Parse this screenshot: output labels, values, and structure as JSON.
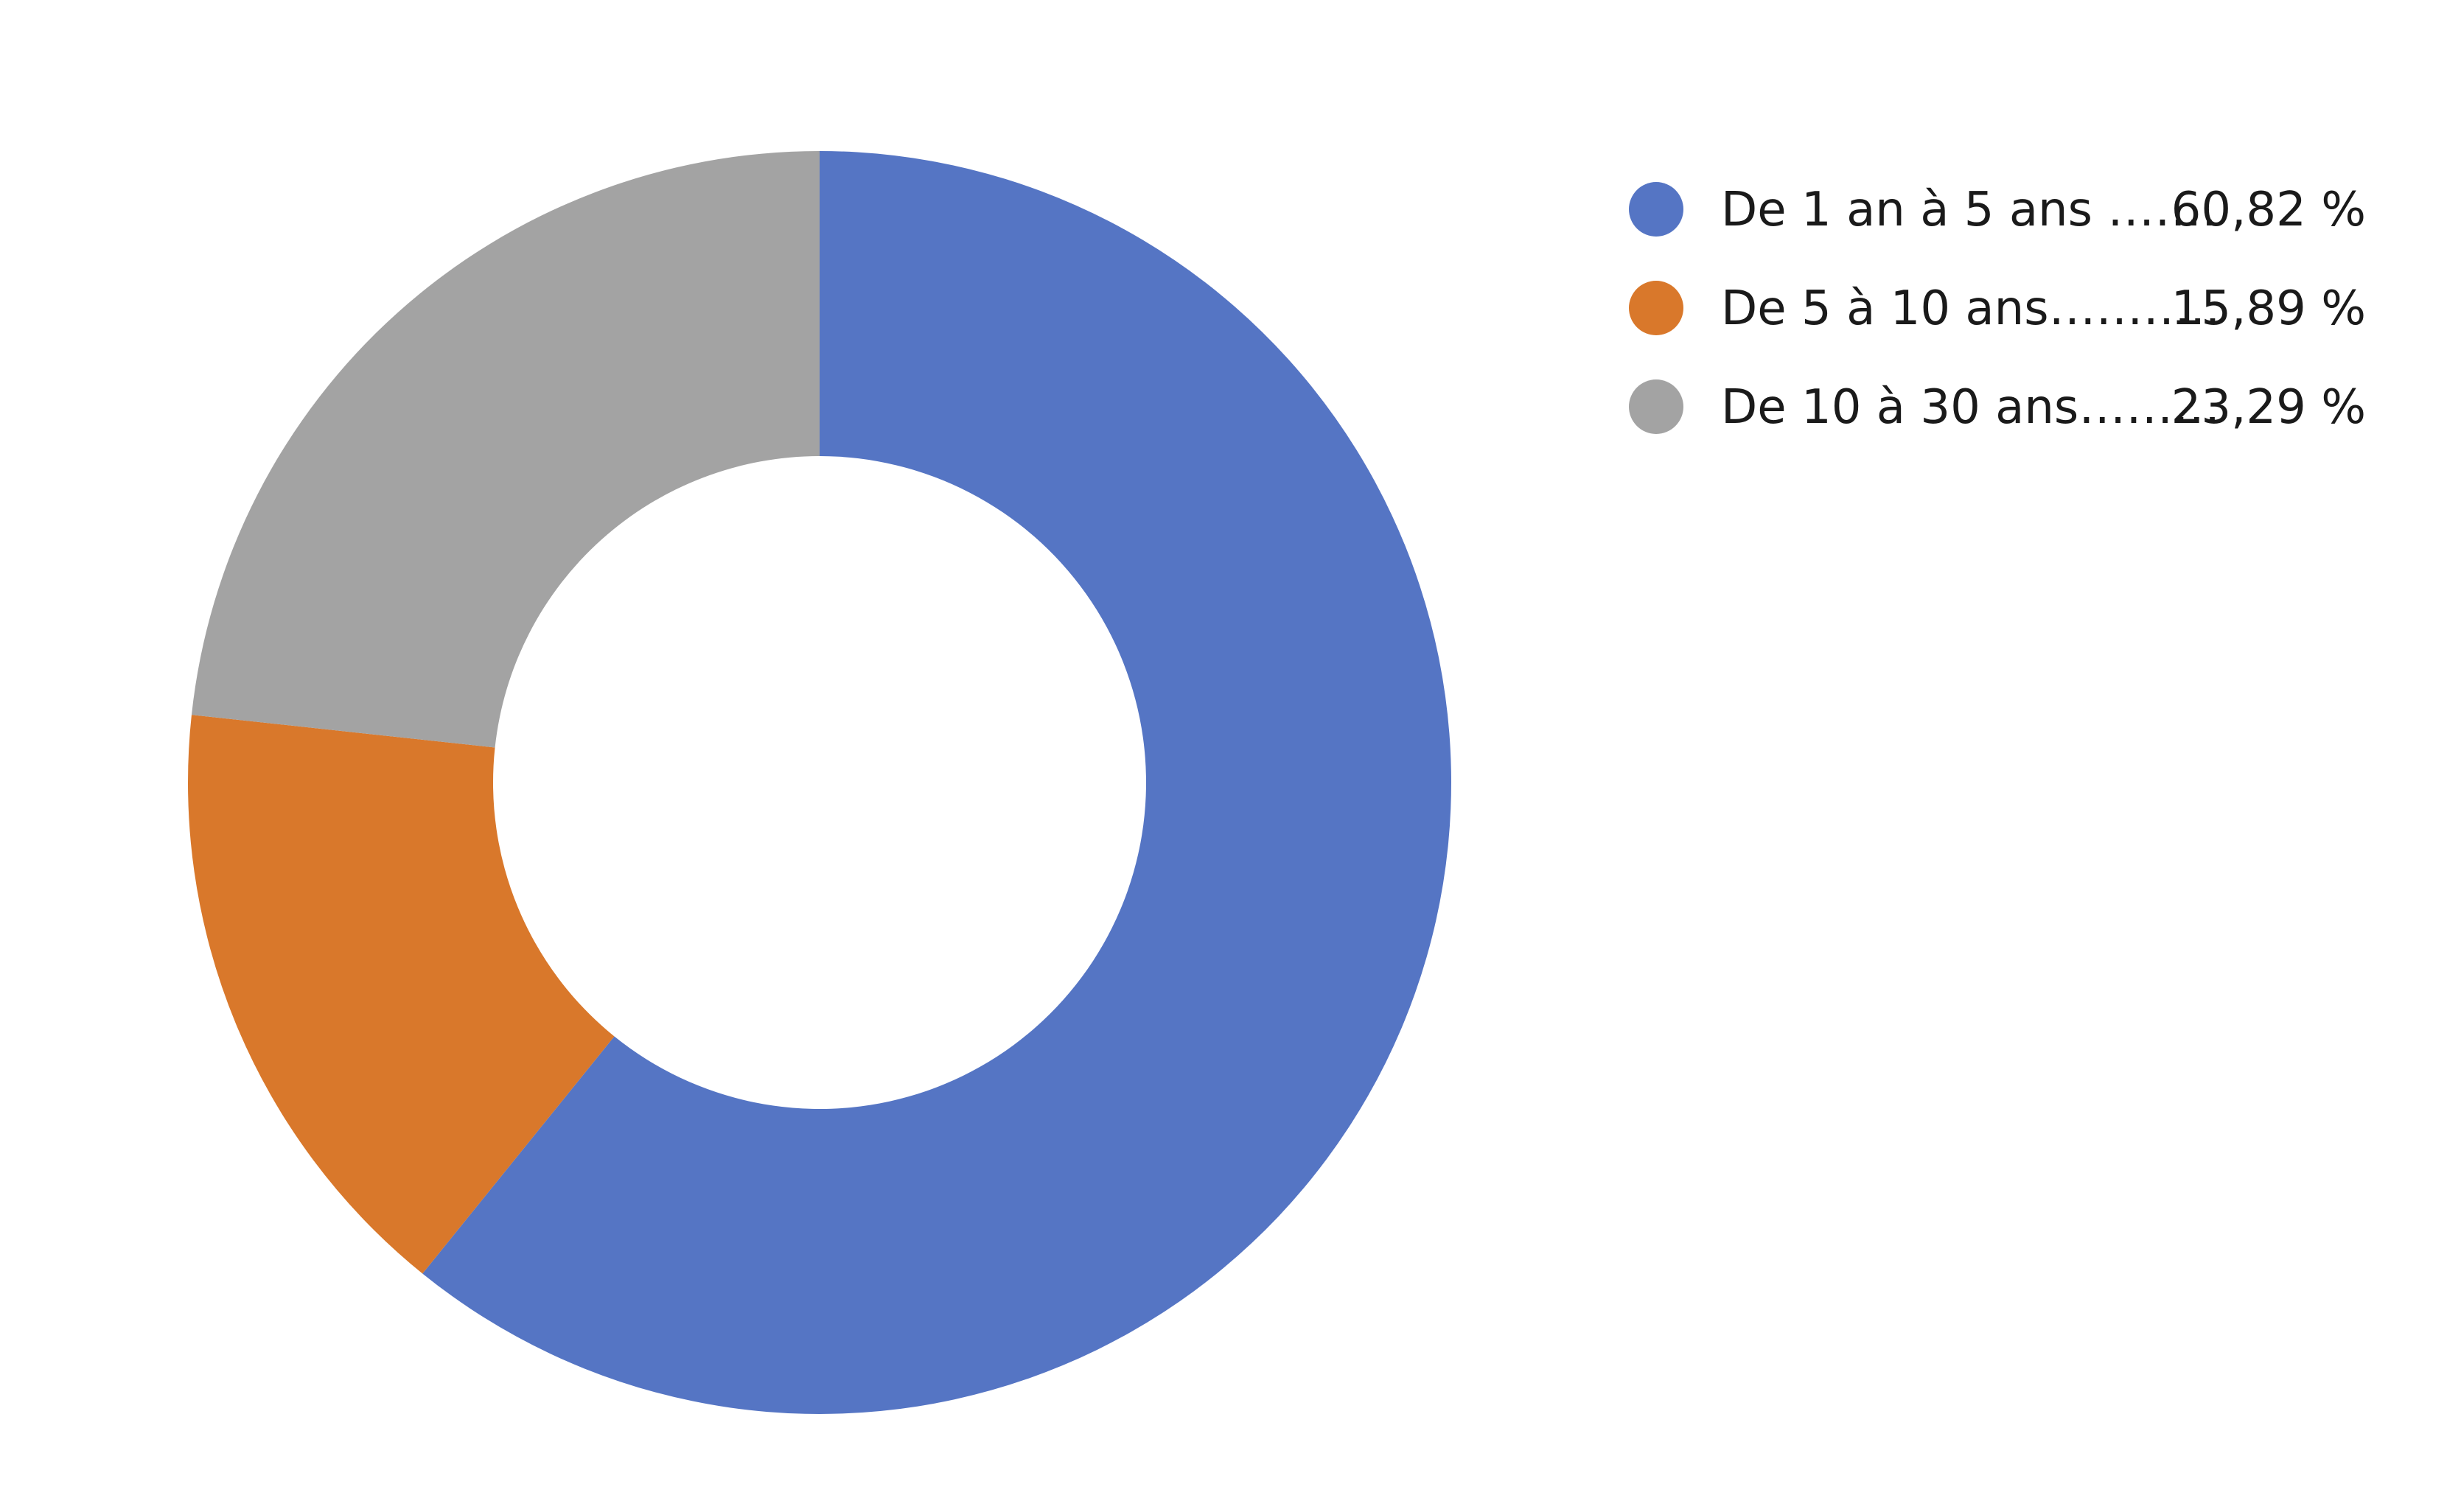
{
  "chart_data": {
    "type": "pie",
    "donut": true,
    "start_angle_deg": 0,
    "direction": "clockwise",
    "slices": [
      {
        "label": "De 1 an à 5 ans …….",
        "value_text": "60,82 %",
        "value": 60.82,
        "color": "#5575C4"
      },
      {
        "label": "De 5 à 10 ans………..",
        "value_text": "15,89 %",
        "value": 15.89,
        "color": "#D9782B"
      },
      {
        "label": "De 10 à 30 ans………",
        "value_text": "23,29 %",
        "value": 23.29,
        "color": "#A3A3A3"
      }
    ],
    "legend_position": "top-right"
  }
}
